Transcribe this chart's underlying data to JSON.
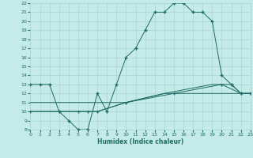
{
  "xlabel": "Humidex (Indice chaleur)",
  "bg_color": "#c5ebe8",
  "grid_color": "#a8d5d2",
  "line_color": "#1e6b65",
  "xlim": [
    0,
    23
  ],
  "ylim": [
    8,
    22
  ],
  "xticks": [
    0,
    1,
    2,
    3,
    4,
    5,
    6,
    7,
    8,
    9,
    10,
    11,
    12,
    13,
    14,
    15,
    16,
    17,
    18,
    19,
    20,
    21,
    22,
    23
  ],
  "yticks": [
    8,
    9,
    10,
    11,
    12,
    13,
    14,
    15,
    16,
    17,
    18,
    19,
    20,
    21,
    22
  ],
  "curve1_x": [
    0,
    1,
    2,
    3,
    4,
    5,
    6,
    7,
    8,
    9,
    10,
    11,
    12,
    13,
    14,
    15,
    16,
    17,
    18,
    19,
    20,
    21,
    22,
    23
  ],
  "curve1_y": [
    13,
    13,
    13,
    10,
    9,
    8,
    8,
    12,
    10,
    13,
    16,
    17,
    19,
    21,
    21,
    22,
    22,
    21,
    21,
    20,
    14,
    13,
    12,
    12
  ],
  "curve2_x": [
    0,
    3,
    5,
    6,
    7,
    10,
    15,
    20,
    21,
    22,
    23
  ],
  "curve2_y": [
    10,
    10,
    10,
    10,
    10,
    11,
    12,
    13,
    13,
    12,
    12
  ],
  "curve3_x": [
    0,
    3,
    5,
    6,
    7,
    10,
    14,
    19,
    20,
    22,
    23
  ],
  "curve3_y": [
    11,
    11,
    11,
    11,
    11,
    11,
    12,
    13,
    13,
    12,
    12
  ],
  "curve4_x": [
    0,
    3,
    5,
    6,
    7,
    10,
    14,
    15,
    19,
    20,
    22,
    23
  ],
  "curve4_y": [
    10,
    10,
    10,
    10,
    10,
    11,
    12,
    12,
    12,
    12,
    12,
    12
  ]
}
